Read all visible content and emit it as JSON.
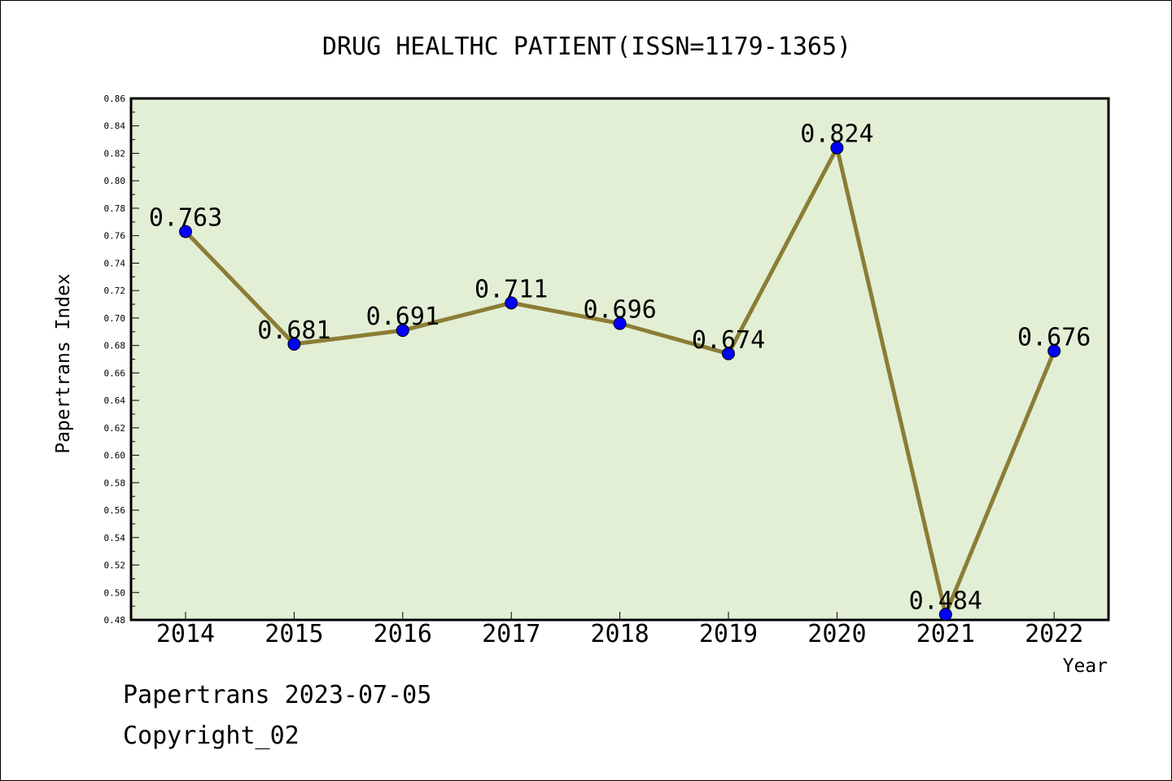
{
  "chart_data": {
    "type": "line",
    "title": "DRUG HEALTHC PATIENT(ISSN=1179-1365)",
    "xlabel": "Year",
    "ylabel": "Papertrans Index",
    "categories": [
      "2014",
      "2015",
      "2016",
      "2017",
      "2018",
      "2019",
      "2020",
      "2021",
      "2022"
    ],
    "series": [
      {
        "values": [
          0.763,
          0.681,
          0.691,
          0.711,
          0.696,
          0.674,
          0.824,
          0.484,
          0.676
        ]
      }
    ],
    "data_labels": [
      "0.763",
      "0.681",
      "0.691",
      "0.711",
      "0.696",
      "0.674",
      "0.824",
      "0.484",
      "0.676"
    ],
    "ylim": [
      0.48,
      0.86
    ],
    "yticks": [
      "0.48",
      "0.50",
      "0.52",
      "0.54",
      "0.56",
      "0.58",
      "0.60",
      "0.62",
      "0.64",
      "0.66",
      "0.68",
      "0.70",
      "0.72",
      "0.74",
      "0.76",
      "0.78",
      "0.80",
      "0.82",
      "0.84",
      "0.86"
    ],
    "grid": false,
    "colors": {
      "plot_background": "#e2efd5",
      "line": "#8b7d35",
      "marker": "#0000ff"
    }
  },
  "footer": {
    "line1": "Papertrans 2023-07-05",
    "line2": "Copyright_02"
  }
}
